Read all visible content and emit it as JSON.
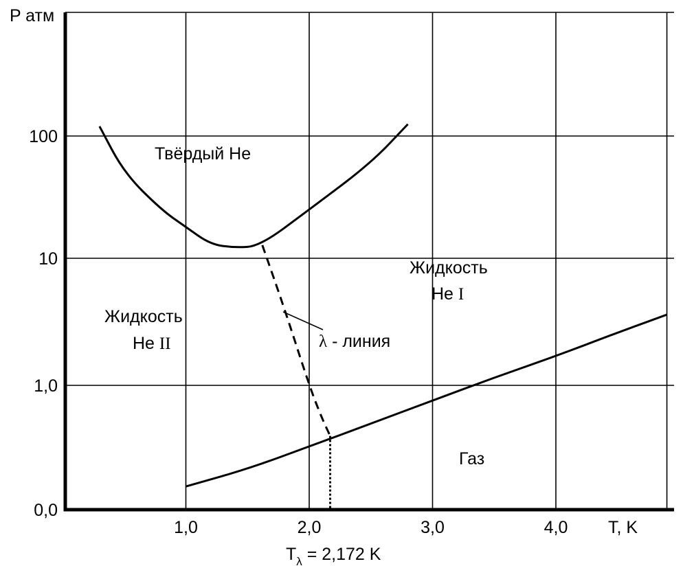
{
  "chart_data": {
    "type": "line",
    "title": "",
    "xlabel": "T, K",
    "ylabel": "P атм",
    "x_ticks": [
      "1,0",
      "2,0",
      "3,0",
      "4,0"
    ],
    "x_tick_values": [
      1.0,
      2.0,
      3.0,
      4.0
    ],
    "y_ticks": [
      "0,0",
      "1,0",
      "10",
      "100"
    ],
    "xlim": [
      0,
      4.9
    ],
    "y_scale": "logarithmic, lowest tick labelled 0,0",
    "grid": true,
    "lambda_temperature_label": {
      "T": "T",
      "sub": "λ",
      "rest": " = 2,172 K",
      "value_K": 2.172
    },
    "regions": {
      "solid": "Твёрдый Не",
      "liquid_he2_line1": "Жидкость",
      "liquid_he2_line2_prefix": "Не ",
      "liquid_he2_roman": "II",
      "liquid_he1_line1": "Жидкость",
      "liquid_he1_line2_prefix": "Не ",
      "liquid_he1_roman": "I",
      "gas": "Газ"
    },
    "annotation": {
      "symbol": "λ",
      "text": " - линия"
    },
    "series": [
      {
        "id": "melting",
        "style": "solid",
        "points": [
          [
            0.3,
            120
          ],
          [
            0.5,
            50
          ],
          [
            0.8,
            25
          ],
          [
            1.0,
            18
          ],
          [
            1.2,
            13
          ],
          [
            1.4,
            12.2
          ],
          [
            1.6,
            12.6
          ],
          [
            2.0,
            25
          ],
          [
            2.5,
            60
          ],
          [
            2.8,
            125
          ]
        ]
      },
      {
        "id": "lambda",
        "style": "dashed",
        "points": [
          [
            1.62,
            12.8
          ],
          [
            1.8,
            4.0
          ],
          [
            2.0,
            1.0
          ],
          [
            2.1,
            0.56
          ],
          [
            2.17,
            0.4
          ]
        ]
      },
      {
        "id": "vapor",
        "style": "solid",
        "points": [
          [
            1.0,
            0.16
          ],
          [
            1.5,
            0.22
          ],
          [
            2.0,
            0.33
          ],
          [
            2.5,
            0.5
          ],
          [
            3.0,
            0.76
          ],
          [
            3.5,
            1.15
          ],
          [
            4.0,
            1.7
          ],
          [
            4.5,
            2.6
          ],
          [
            4.9,
            3.6
          ]
        ]
      },
      {
        "id": "lambda-drop",
        "style": "dotted",
        "points": [
          [
            2.17,
            0.4
          ],
          [
            2.17,
            0
          ]
        ]
      }
    ]
  }
}
